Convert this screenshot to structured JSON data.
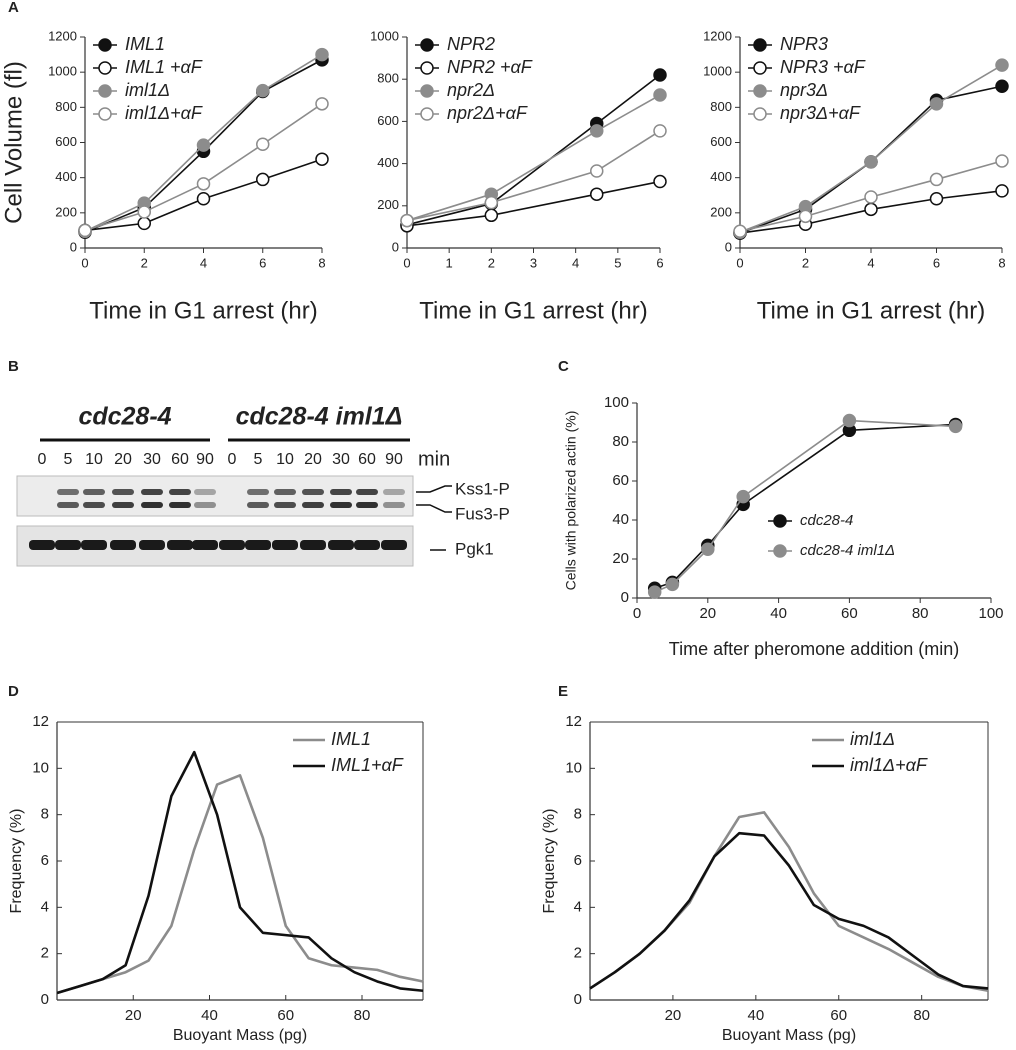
{
  "chart_data": [
    {
      "type": "line",
      "panel_label": "A",
      "x_label": "Time in G1 arrest (hr)",
      "y_label": "Cell Volume (fl)",
      "x": [
        0,
        2,
        4,
        6,
        8
      ],
      "xlim": [
        0,
        8
      ],
      "xticks": [
        0,
        2,
        4,
        6,
        8
      ],
      "ylim": [
        0,
        1200
      ],
      "yticks": [
        0,
        200,
        400,
        600,
        800,
        1000,
        1200
      ],
      "series": [
        {
          "name": "IML1",
          "color": "#111111",
          "marker": "filled",
          "values": [
            90,
            230,
            550,
            890,
            1070
          ]
        },
        {
          "name": "IML1 +αF",
          "color": "#111111",
          "marker": "open",
          "values": [
            100,
            140,
            280,
            390,
            505
          ]
        },
        {
          "name": "iml1Δ",
          "color": "#8c8c8c",
          "marker": "filled",
          "values": [
            95,
            255,
            585,
            895,
            1100
          ]
        },
        {
          "name": "iml1Δ+αF",
          "color": "#8c8c8c",
          "marker": "open",
          "values": [
            100,
            205,
            365,
            590,
            820
          ]
        }
      ]
    },
    {
      "type": "line",
      "x_label": "Time in G1 arrest (hr)",
      "x": [
        0,
        2,
        4.5,
        6
      ],
      "xlim": [
        0,
        6
      ],
      "xticks": [
        0,
        1,
        2,
        3,
        4,
        5,
        6
      ],
      "ylim": [
        0,
        1000
      ],
      "yticks": [
        0,
        200,
        400,
        600,
        800,
        1000
      ],
      "series": [
        {
          "name": "NPR2",
          "color": "#111111",
          "marker": "filled",
          "values": [
            110,
            210,
            590,
            820
          ]
        },
        {
          "name": "NPR2 +αF",
          "color": "#111111",
          "marker": "open",
          "values": [
            105,
            155,
            255,
            315
          ]
        },
        {
          "name": "npr2Δ",
          "color": "#8c8c8c",
          "marker": "filled",
          "values": [
            130,
            255,
            555,
            725
          ]
        },
        {
          "name": "npr2Δ+αF",
          "color": "#8c8c8c",
          "marker": "open",
          "values": [
            130,
            215,
            365,
            555
          ]
        }
      ]
    },
    {
      "type": "line",
      "x_label": "Time in G1 arrest (hr)",
      "x": [
        0,
        2,
        4,
        6,
        8
      ],
      "xlim": [
        0,
        8
      ],
      "xticks": [
        0,
        2,
        4,
        6,
        8
      ],
      "ylim": [
        0,
        1200
      ],
      "yticks": [
        0,
        200,
        400,
        600,
        800,
        1000,
        1200
      ],
      "series": [
        {
          "name": "NPR3",
          "color": "#111111",
          "marker": "filled",
          "values": [
            85,
            220,
            490,
            840,
            920
          ]
        },
        {
          "name": "NPR3 +αF",
          "color": "#111111",
          "marker": "open",
          "values": [
            85,
            135,
            220,
            280,
            325
          ]
        },
        {
          "name": "npr3Δ",
          "color": "#8c8c8c",
          "marker": "filled",
          "values": [
            90,
            235,
            490,
            820,
            1040
          ]
        },
        {
          "name": "npr3Δ+αF",
          "color": "#8c8c8c",
          "marker": "open",
          "values": [
            95,
            180,
            290,
            390,
            495
          ]
        }
      ]
    },
    {
      "type": "line",
      "panel_label": "C",
      "x_label": "Time after pheromone addition (min)",
      "y_label": "Cells with polarized actin (%)",
      "x": [
        5,
        10,
        20,
        30,
        60,
        90
      ],
      "xlim": [
        0,
        100
      ],
      "xticks": [
        0,
        20,
        40,
        60,
        80,
        100
      ],
      "ylim": [
        0,
        100
      ],
      "yticks": [
        0,
        20,
        40,
        60,
        80,
        100
      ],
      "series": [
        {
          "name": "cdc28-4",
          "color": "#111111",
          "marker": "filled",
          "values": [
            5,
            8,
            27,
            48,
            86,
            89
          ]
        },
        {
          "name": "cdc28-4 iml1Δ",
          "color": "#8c8c8c",
          "marker": "filled",
          "values": [
            3,
            7,
            25,
            52,
            91,
            88
          ]
        }
      ]
    },
    {
      "type": "line",
      "panel_label": "D",
      "x_label": "Buoyant Mass (pg)",
      "y_label": "Frequency (%)",
      "box": true,
      "x": [
        0,
        6,
        12,
        18,
        24,
        30,
        36,
        42,
        48,
        54,
        60,
        66,
        72,
        78,
        84,
        90,
        96
      ],
      "xlim": [
        0,
        96
      ],
      "xticks": [
        20,
        40,
        60,
        80
      ],
      "ylim": [
        0,
        12
      ],
      "yticks": [
        0,
        2,
        4,
        6,
        8,
        10,
        12
      ],
      "series": [
        {
          "name": "IML1",
          "color": "#8c8c8c",
          "values": [
            0.3,
            0.6,
            0.9,
            1.2,
            1.7,
            3.2,
            6.5,
            9.3,
            9.7,
            7.0,
            3.2,
            1.8,
            1.5,
            1.4,
            1.3,
            1.0,
            0.8
          ]
        },
        {
          "name": "IML1+αF",
          "color": "#111111",
          "values": [
            0.3,
            0.6,
            0.9,
            1.5,
            4.5,
            8.8,
            10.7,
            8.0,
            4.0,
            2.9,
            2.8,
            2.7,
            1.8,
            1.2,
            0.8,
            0.5,
            0.4
          ]
        }
      ]
    },
    {
      "type": "line",
      "panel_label": "E",
      "x_label": "Buoyant Mass (pg)",
      "y_label": "Frequency (%)",
      "box": true,
      "x": [
        0,
        6,
        12,
        18,
        24,
        30,
        36,
        42,
        48,
        54,
        60,
        66,
        72,
        78,
        84,
        90,
        96
      ],
      "xlim": [
        0,
        96
      ],
      "xticks": [
        20,
        40,
        60,
        80
      ],
      "ylim": [
        0,
        12
      ],
      "yticks": [
        0,
        2,
        4,
        6,
        8,
        10,
        12
      ],
      "series": [
        {
          "name": "iml1Δ",
          "color": "#8c8c8c",
          "values": [
            0.5,
            1.2,
            2.0,
            3.0,
            4.2,
            6.2,
            7.9,
            8.1,
            6.6,
            4.6,
            3.2,
            2.7,
            2.2,
            1.6,
            1.0,
            0.6,
            0.4
          ]
        },
        {
          "name": "iml1Δ+αF",
          "color": "#111111",
          "values": [
            0.5,
            1.2,
            2.0,
            3.0,
            4.3,
            6.2,
            7.2,
            7.1,
            5.8,
            4.1,
            3.5,
            3.2,
            2.7,
            1.9,
            1.1,
            0.6,
            0.5
          ]
        }
      ]
    }
  ],
  "blot": {
    "panel_label": "B",
    "groups": [
      "cdc28-4",
      "cdc28-4 iml1Δ"
    ],
    "lanes": [
      [
        "0",
        "5",
        "10",
        "20",
        "30",
        "60",
        "90"
      ],
      [
        "0",
        "5",
        "10",
        "20",
        "30",
        "60",
        "90"
      ]
    ],
    "unit": "min",
    "bands": [
      "Kss1-P",
      "Fus3-P",
      "Pgk1"
    ]
  }
}
